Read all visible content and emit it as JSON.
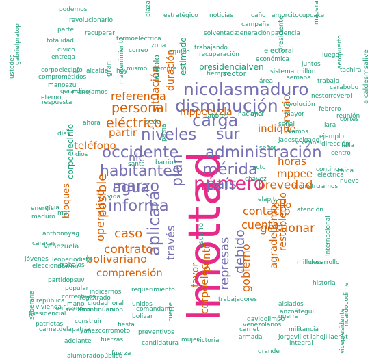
{
  "palette": {
    "green": "#1B9E77",
    "orange": "#D95F02",
    "purple": "#7570B3",
    "magenta": "#E7298A",
    "gray": "#666666"
  },
  "words": [
    {
      "text": "lmottad",
      "color": "magenta"
    },
    {
      "text": "número",
      "color": "magenta"
    },
    {
      "text": "nicolasmaduro",
      "color": "purple"
    },
    {
      "text": "disminución",
      "color": "purple"
    },
    {
      "text": "administración",
      "color": "purple"
    },
    {
      "text": "habitantes",
      "color": "purple"
    },
    {
      "text": "occidente",
      "color": "purple"
    },
    {
      "text": "informa",
      "color": "purple"
    },
    {
      "text": "aplicará",
      "color": "purple"
    },
    {
      "text": "mérida",
      "color": "purple"
    },
    {
      "text": "marzo",
      "color": "purple"
    },
    {
      "text": "niveles",
      "color": "purple"
    },
    {
      "text": "carga",
      "color": "purple"
    },
    {
      "text": "agua",
      "color": "purple"
    },
    {
      "text": "país",
      "color": "purple"
    },
    {
      "text": "sur",
      "color": "purple"
    },
    {
      "text": "plan",
      "color": "purple"
    },
    {
      "text": "través",
      "color": "purple"
    },
    {
      "text": "nic",
      "color": "purple"
    },
    {
      "text": "represas",
      "color": "purple"
    },
    {
      "text": "debido",
      "color": "purple"
    },
    {
      "text": "eléctrico",
      "color": "orange"
    },
    {
      "text": "personal",
      "color": "orange"
    },
    {
      "text": "referencia",
      "color": "orange"
    },
    {
      "text": "situación",
      "color": "orange"
    },
    {
      "text": "teléfono",
      "color": "orange"
    },
    {
      "text": "partir",
      "color": "orange"
    },
    {
      "text": "posible",
      "color": "orange"
    },
    {
      "text": "operativo",
      "color": "orange"
    },
    {
      "text": "caso",
      "color": "orange"
    },
    {
      "text": "contrato",
      "color": "orange"
    },
    {
      "text": "bolivariano",
      "color": "orange"
    },
    {
      "text": "gestionar",
      "color": "orange"
    },
    {
      "text": "brevedad",
      "color": "orange"
    },
    {
      "text": "mppee",
      "color": "orange"
    },
    {
      "text": "mppeevzla",
      "color": "orange"
    },
    {
      "text": "duración",
      "color": "orange"
    },
    {
      "text": "servicio",
      "color": "orange"
    },
    {
      "text": "indique",
      "color": "orange"
    },
    {
      "text": "horas",
      "color": "orange"
    },
    {
      "text": "edo",
      "color": "orange"
    },
    {
      "text": "contacto",
      "color": "orange"
    },
    {
      "text": "cuenta",
      "color": "orange"
    },
    {
      "text": "gobierno",
      "color": "orange"
    },
    {
      "text": "agradecemos",
      "color": "orange"
    },
    {
      "text": "comprensión",
      "color": "orange"
    },
    {
      "text": "punto",
      "color": "orange"
    },
    {
      "text": "corpoelec",
      "color": "orange"
    },
    {
      "text": "favor",
      "color": "orange"
    },
    {
      "text": "restablecido",
      "color": "orange"
    },
    {
      "text": "bloques",
      "color": "orange"
    },
    {
      "text": "corpoelecinfo",
      "color": "green"
    },
    {
      "text": "venezuela",
      "color": "green"
    },
    {
      "text": "usuario",
      "color": "green"
    },
    {
      "text": "estimado",
      "color": "green"
    },
    {
      "text": "sector",
      "color": "green"
    },
    {
      "text": "presidencialven",
      "color": "green"
    },
    {
      "text": "pueblo",
      "color": "green"
    },
    {
      "text": "presidente",
      "color": "green"
    },
    {
      "text": "electoral",
      "color": "green"
    },
    {
      "text": "revolucionario",
      "color": "green"
    },
    {
      "text": "estratégico",
      "color": "green"
    },
    {
      "text": "noticias",
      "color": "green"
    },
    {
      "text": "caño",
      "color": "green"
    },
    {
      "text": "amorcitocupcake",
      "color": "green"
    },
    {
      "text": "campaña",
      "color": "green"
    },
    {
      "text": "solventada",
      "color": "green"
    },
    {
      "text": "generación",
      "color": "green"
    },
    {
      "text": "paciencia",
      "color": "green"
    },
    {
      "text": "manera",
      "color": "green"
    },
    {
      "text": "trabajando",
      "color": "green"
    },
    {
      "text": "recuperación",
      "color": "green"
    },
    {
      "text": "económica",
      "color": "green"
    },
    {
      "text": "millón",
      "color": "green"
    },
    {
      "text": "trabajo",
      "color": "green"
    },
    {
      "text": "luego",
      "color": "green"
    },
    {
      "text": "plaza",
      "color": "green"
    },
    {
      "text": "recuperar",
      "color": "green"
    },
    {
      "text": "termoeléctrica",
      "color": "green"
    },
    {
      "text": "totalidad",
      "color": "green"
    },
    {
      "text": "civico",
      "color": "green"
    },
    {
      "text": "entrega",
      "color": "green"
    },
    {
      "text": "corpoelecinfo",
      "color": "green"
    },
    {
      "text": "comprometidos",
      "color": "green"
    },
    {
      "text": "manoazul",
      "color": "green"
    },
    {
      "text": "gerardjgu",
      "color": "green"
    },
    {
      "text": "eterno",
      "color": "green"
    },
    {
      "text": "manejamos",
      "color": "green"
    },
    {
      "text": "respuesta",
      "color": "green"
    },
    {
      "text": "millones",
      "color": "green"
    },
    {
      "text": "elecciones",
      "color": "green"
    },
    {
      "text": "partidopsuv",
      "color": "green"
    },
    {
      "text": "popular",
      "color": "green"
    },
    {
      "text": "república",
      "color": "green"
    },
    {
      "text": "correctivos",
      "color": "green"
    },
    {
      "text": "registrado",
      "color": "green"
    },
    {
      "text": "requerimiento",
      "color": "green"
    },
    {
      "text": "trabajadores",
      "color": "green"
    },
    {
      "text": "carnetdelapatria",
      "color": "green"
    },
    {
      "text": "yanezcorromoto",
      "color": "green"
    },
    {
      "text": "alumbradopúblico",
      "color": "green"
    },
    {
      "text": "candidatura",
      "color": "green"
    },
    {
      "text": "preventivos",
      "color": "green"
    },
    {
      "text": "fuerzas",
      "color": "green"
    },
    {
      "text": "adelante",
      "color": "green"
    },
    {
      "text": "construir",
      "color": "green"
    },
    {
      "text": "victoria",
      "color": "green"
    },
    {
      "text": "integral",
      "color": "green"
    },
    {
      "text": "militancia",
      "color": "green"
    },
    {
      "text": "jorgevillet",
      "color": "green"
    },
    {
      "text": "lahojillaenvt",
      "color": "green"
    },
    {
      "text": "vicepresidente",
      "color": "green"
    },
    {
      "text": "internacional",
      "color": "green"
    },
    {
      "text": "desarrollo",
      "color": "green"
    },
    {
      "text": "historia",
      "color": "green"
    },
    {
      "text": "ricardocodime",
      "color": "green"
    },
    {
      "text": "vtvcanal",
      "color": "green"
    },
    {
      "text": "dirección",
      "color": "green"
    },
    {
      "text": "ministro",
      "color": "green"
    },
    {
      "text": "ramos",
      "color": "green"
    },
    {
      "text": "atención",
      "color": "green"
    },
    {
      "text": "eléctrica",
      "color": "green"
    },
    {
      "text": "continua",
      "color": "green"
    },
    {
      "text": "jadesdelgado",
      "color": "green"
    },
    {
      "text": "revolución",
      "color": "green"
    },
    {
      "text": "nestorreverol",
      "color": "green"
    },
    {
      "text": "febrero",
      "color": "green"
    },
    {
      "text": "aeropuerto",
      "color": "green"
    },
    {
      "text": "alcaldesmsalive",
      "color": "green"
    },
    {
      "text": "gran",
      "color": "green"
    },
    {
      "text": "patria",
      "color": "green"
    },
    {
      "text": "mantenimiento",
      "color": "green"
    },
    {
      "text": "nacional",
      "color": "green"
    },
    {
      "text": "labores",
      "color": "green"
    },
    {
      "text": "guerra",
      "color": "green"
    },
    {
      "text": "chávez",
      "color": "green"
    },
    {
      "text": "corazón",
      "color": "green"
    },
    {
      "text": "jóvenes",
      "color": "green"
    },
    {
      "text": "trabajos",
      "color": "green"
    },
    {
      "text": "leoperiodista",
      "color": "green"
    },
    {
      "text": "caracas",
      "color": "green"
    },
    {
      "text": "anthonnyag",
      "color": "green"
    },
    {
      "text": "energía",
      "color": "green"
    },
    {
      "text": "maduro",
      "color": "green"
    },
    {
      "text": "zulia",
      "color": "green"
    },
    {
      "text": "indicarnos",
      "color": "green"
    },
    {
      "text": "continúan",
      "color": "green"
    },
    {
      "text": "bolívar",
      "color": "green"
    },
    {
      "text": "comandante",
      "color": "green"
    },
    {
      "text": "fiesta",
      "color": "green"
    },
    {
      "text": "fuerte",
      "color": "green"
    },
    {
      "text": "grande",
      "color": "green"
    },
    {
      "text": "armada",
      "color": "green"
    },
    {
      "text": "carnet",
      "color": "green"
    },
    {
      "text": "mujer",
      "color": "green"
    },
    {
      "text": "aislados",
      "color": "green"
    },
    {
      "text": "anzoátegui",
      "color": "green"
    },
    {
      "text": "davidolimpo",
      "color": "green"
    },
    {
      "text": "venezolanos",
      "color": "green"
    },
    {
      "text": "reclamo",
      "color": "green"
    },
    {
      "text": "unión",
      "color": "green"
    },
    {
      "text": "unidos",
      "color": "green"
    },
    {
      "text": "fuerza",
      "color": "green"
    },
    {
      "text": "ciudad",
      "color": "green"
    },
    {
      "text": "moral",
      "color": "green"
    },
    {
      "text": "mano",
      "color": "green"
    },
    {
      "text": "enfermos",
      "color": "green"
    },
    {
      "text": "sgberaria",
      "color": "green"
    },
    {
      "text": "patriotas",
      "color": "green"
    },
    {
      "text": "vivienda",
      "color": "green"
    },
    {
      "text": "presidencial",
      "color": "green"
    },
    {
      "text": "podemos",
      "color": "green"
    },
    {
      "text": "gabrielpratop",
      "color": "green"
    },
    {
      "text": "ustedes",
      "color": "green"
    },
    {
      "text": "correo",
      "color": "green"
    },
    {
      "text": "zona",
      "color": "green"
    },
    {
      "text": "equipo",
      "color": "green"
    },
    {
      "text": "mismo",
      "color": "green"
    },
    {
      "text": "siempre",
      "color": "green"
    },
    {
      "text": "alcalde",
      "color": "green"
    },
    {
      "text": "parte",
      "color": "green"
    },
    {
      "text": "hoy",
      "color": "green"
    },
    {
      "text": "paz",
      "color": "green"
    },
    {
      "text": "ahora",
      "color": "green"
    },
    {
      "text": "días",
      "color": "green"
    },
    {
      "text": "vida",
      "color": "green"
    },
    {
      "text": "dios",
      "color": "green"
    },
    {
      "text": "santa",
      "color": "green"
    },
    {
      "text": "barrios",
      "color": "green"
    },
    {
      "text": "tiempo",
      "color": "green"
    },
    {
      "text": "juntos",
      "color": "green"
    },
    {
      "text": "área",
      "color": "green"
    },
    {
      "text": "sistema",
      "color": "green"
    },
    {
      "text": "ayer",
      "color": "green"
    },
    {
      "text": "semana",
      "color": "green"
    },
    {
      "text": "mayor",
      "color": "green"
    },
    {
      "text": "vamos",
      "color": "green"
    },
    {
      "text": "ejemplo",
      "color": "green"
    },
    {
      "text": "centro",
      "color": "green"
    },
    {
      "text": "caída",
      "color": "green"
    },
    {
      "text": "reunión",
      "color": "green"
    },
    {
      "text": "cortes",
      "color": "green"
    },
    {
      "text": "falla",
      "color": "green"
    },
    {
      "text": "nuevo",
      "color": "green"
    },
    {
      "text": "carabobo",
      "color": "green"
    },
    {
      "text": "tachira",
      "color": "green"
    },
    {
      "text": "lara",
      "color": "green"
    },
    {
      "text": "señal",
      "color": "green"
    },
    {
      "text": "acto",
      "color": "green"
    },
    {
      "text": "señor",
      "color": "green"
    },
    {
      "text": "elapito",
      "color": "green"
    },
    {
      "text": "mar",
      "color": "green"
    },
    {
      "text": "sede",
      "color": "green"
    }
  ]
}
